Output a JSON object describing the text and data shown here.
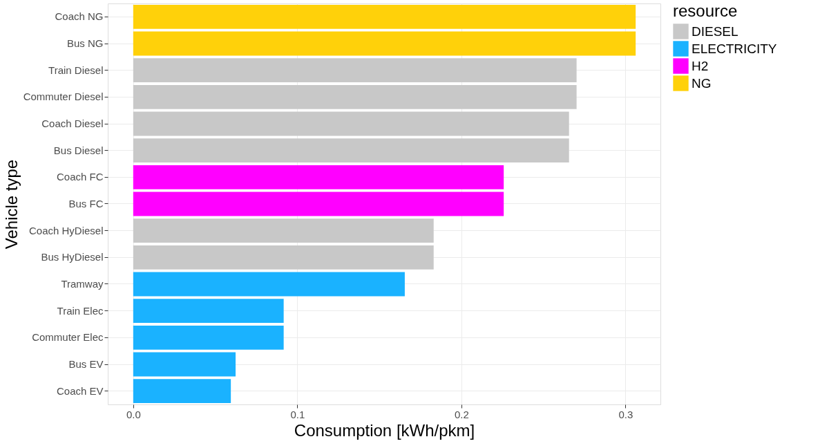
{
  "chart_data": {
    "type": "bar",
    "orientation": "horizontal",
    "xlabel": "Consumption [kWh/pkm]",
    "ylabel": "Vehicle type",
    "legend_title": "resource",
    "legend": "right",
    "grid": true,
    "categories": [
      "Coach NG",
      "Bus NG",
      "Train Diesel",
      "Commuter Diesel",
      "Coach Diesel",
      "Bus Diesel",
      "Coach FC",
      "Bus FC",
      "Coach HyDiesel",
      "Bus HyDiesel",
      "Tramway",
      "Train Elec",
      "Commuter Elec",
      "Bus EV",
      "Coach EV"
    ],
    "xlim": [
      -0.0155,
      0.3213
    ],
    "xticks": [
      {
        "value": 0,
        "label": "0.0"
      },
      0.1,
      0.2,
      0.3
    ],
    "series": [
      {
        "name": "DIESEL",
        "color": "#c8c8c8",
        "values": [
          null,
          null,
          0.2702,
          0.2702,
          0.2656,
          0.2656,
          null,
          null,
          0.1831,
          0.1831,
          null,
          null,
          null,
          null,
          null
        ]
      },
      {
        "name": "ELECTRICITY",
        "color": "#1ab2ff",
        "values": [
          null,
          null,
          null,
          null,
          null,
          null,
          null,
          null,
          null,
          null,
          0.1655,
          0.0917,
          0.0917,
          0.0624,
          0.0595
        ]
      },
      {
        "name": "H2",
        "color": "#ff00ff",
        "values": [
          null,
          null,
          null,
          null,
          null,
          null,
          0.2258,
          0.2258,
          null,
          null,
          null,
          null,
          null,
          null,
          null
        ]
      },
      {
        "name": "NG",
        "color": "#ffd10a",
        "values": [
          0.3062,
          0.3062,
          null,
          null,
          null,
          null,
          null,
          null,
          null,
          null,
          null,
          null,
          null,
          null,
          null
        ]
      }
    ]
  }
}
